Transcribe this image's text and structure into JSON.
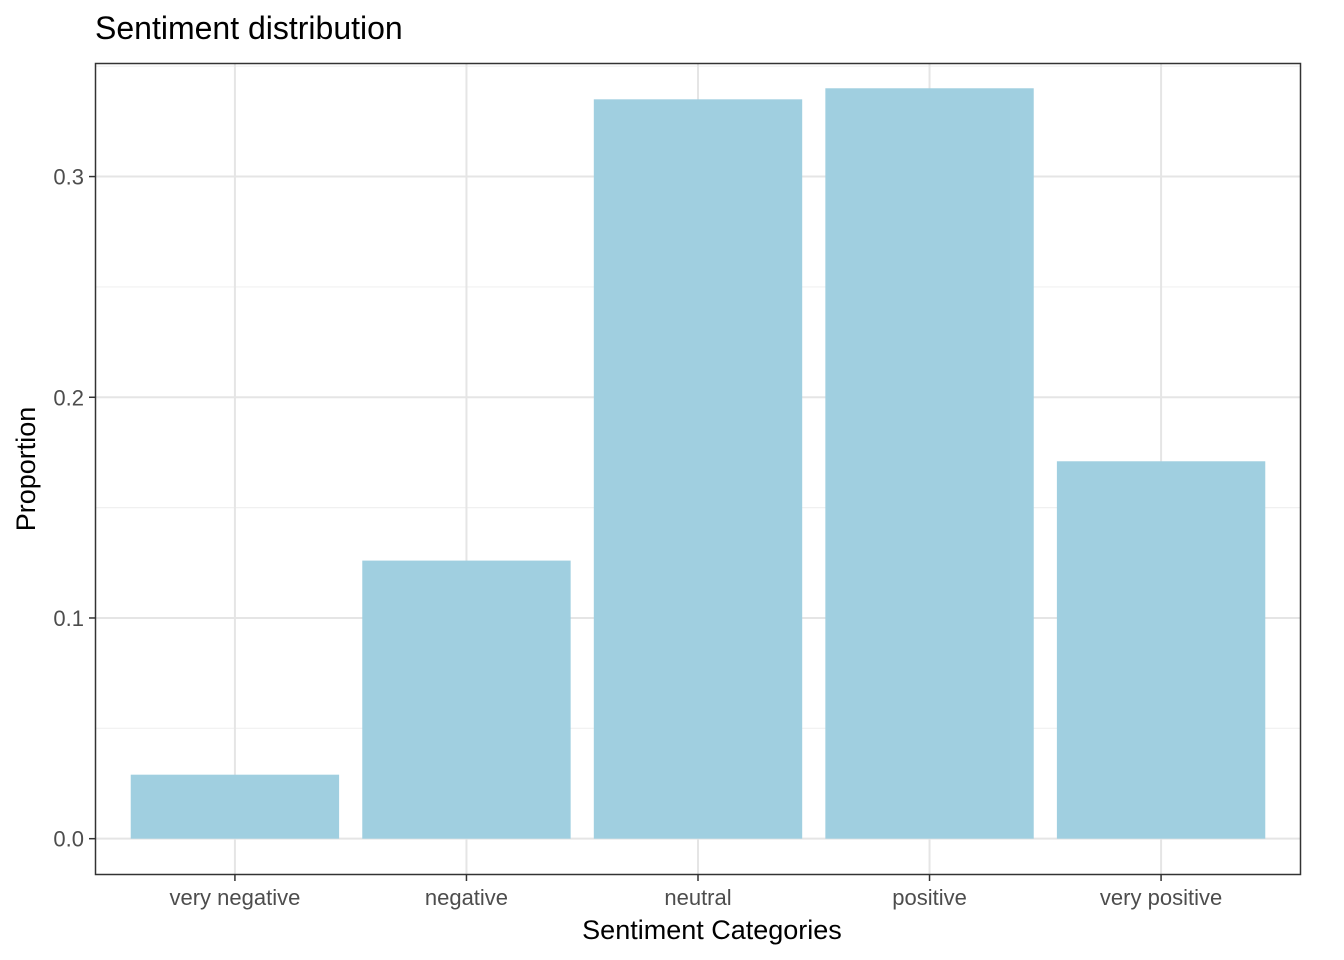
{
  "chart_data": {
    "type": "bar",
    "title": "Sentiment distribution",
    "xlabel": "Sentiment Categories",
    "ylabel": "Proportion",
    "categories": [
      "very negative",
      "negative",
      "neutral",
      "positive",
      "very positive"
    ],
    "values": [
      0.029,
      0.126,
      0.335,
      0.34,
      0.171
    ],
    "ylim": [
      -0.016,
      0.351
    ],
    "yticks": [
      0.0,
      0.1,
      0.2,
      0.3
    ],
    "ytick_labels": [
      "0.0",
      "0.1",
      "0.2",
      "0.3"
    ],
    "grid": true,
    "legend": "none",
    "colors": {
      "bar": "#a0cfe0",
      "grid_major": "#e5e5e5",
      "grid_minor": "#f0f0f0",
      "panel_border": "#333333",
      "tick_text": "#4d4d4d"
    }
  }
}
